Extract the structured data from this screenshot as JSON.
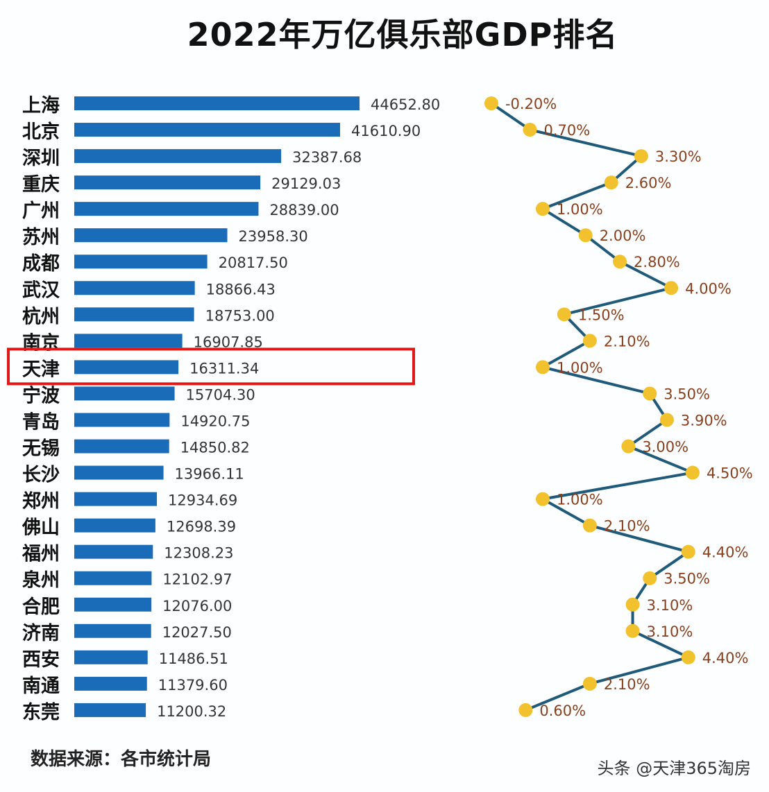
{
  "chart_data": {
    "type": "bar",
    "title": "2022年万亿俱乐部GDP排名",
    "categories": [
      "上海",
      "北京",
      "深圳",
      "重庆",
      "广州",
      "苏州",
      "成都",
      "武汉",
      "杭州",
      "南京",
      "天津",
      "宁波",
      "青岛",
      "无锡",
      "长沙",
      "郑州",
      "佛山",
      "福州",
      "泉州",
      "合肥",
      "济南",
      "西安",
      "南通",
      "东莞"
    ],
    "series": [
      {
        "type": "bar",
        "color": "#1a6bb8",
        "values": [
          44652.8,
          41610.9,
          32387.68,
          29129.03,
          28839.0,
          23958.3,
          20817.5,
          18866.43,
          18753.0,
          16907.85,
          16311.34,
          15704.3,
          14920.75,
          14850.82,
          13966.11,
          12934.69,
          12698.39,
          12308.23,
          12102.97,
          12076.0,
          12027.5,
          11486.51,
          11379.6,
          11200.32
        ],
        "labels": [
          "44652.80",
          "41610.90",
          "32387.68",
          "29129.03",
          "28839.00",
          "23958.30",
          "20817.50",
          "18866.43",
          "18753.00",
          "16907.85",
          "16311.34",
          "15704.30",
          "14920.75",
          "14850.82",
          "13966.11",
          "12934.69",
          "12698.39",
          "12308.23",
          "12102.97",
          "12076.00",
          "12027.50",
          "11486.51",
          "11379.60",
          "11200.32"
        ]
      },
      {
        "type": "line",
        "color": "#1f5a7a",
        "marker_color": "#f2c12e",
        "label_color": "#8a3f1c",
        "orientation": "vertical",
        "values": [
          -0.2,
          0.7,
          3.3,
          2.6,
          1.0,
          2.0,
          2.8,
          4.0,
          1.5,
          2.1,
          1.0,
          3.5,
          3.9,
          3.0,
          4.5,
          1.0,
          2.1,
          4.4,
          3.5,
          3.1,
          3.1,
          4.4,
          2.1,
          0.6
        ],
        "labels": [
          "-0.20%",
          "0.70%",
          "3.30%",
          "2.60%",
          "1.00%",
          "2.00%",
          "2.80%",
          "4.00%",
          "1.50%",
          "2.10%",
          "1.00%",
          "3.50%",
          "3.90%",
          "3.00%",
          "4.50%",
          "1.00%",
          "2.10%",
          "4.40%",
          "3.50%",
          "3.10%",
          "3.10%",
          "4.40%",
          "2.10%",
          "0.60%"
        ]
      }
    ],
    "highlight": {
      "category": "天津",
      "color": "#e01818"
    },
    "grid": false,
    "legend": "none"
  },
  "source": "数据来源：各市统计局",
  "watermark": "头条 @天津365淘房"
}
